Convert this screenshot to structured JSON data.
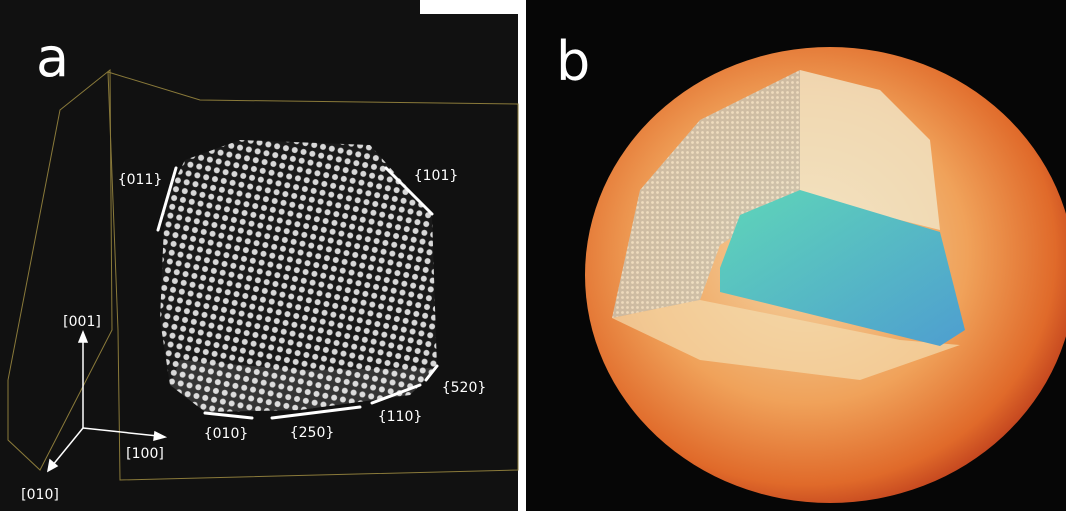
{
  "figure": {
    "panels": [
      {
        "label": "a",
        "annotations": [
          "{011}",
          "{101}",
          "[001]",
          "{520}",
          "{010}",
          "{250}",
          "{110}",
          "[100]",
          "[010]"
        ]
      },
      {
        "label": "b"
      }
    ]
  }
}
